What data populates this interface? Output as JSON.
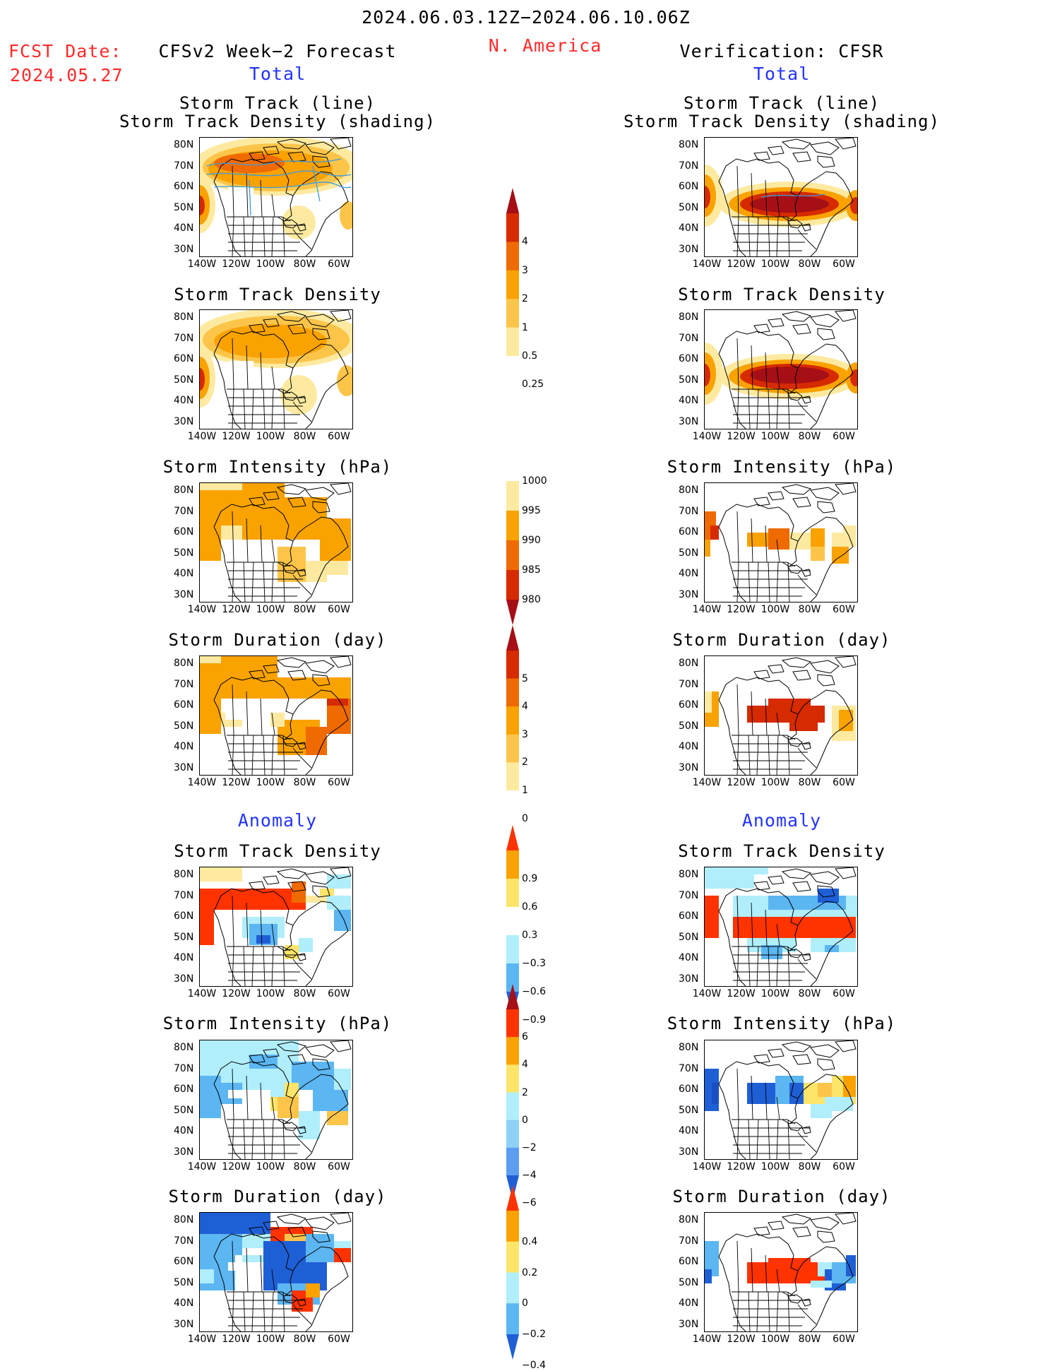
{
  "header": {
    "period": "2024.06.03.12Z−2024.06.10.06Z",
    "fcst_label": "FCST Date:",
    "fcst_date": "2024.05.27",
    "left_title": "CFSv2 Week−2 Forecast",
    "region": "N. America",
    "right_title": "Verification: CFSR",
    "total_label": "Total",
    "anomaly_label": "Anomaly"
  },
  "axes": {
    "lat_labels": [
      "80N",
      "70N",
      "60N",
      "50N",
      "40N",
      "30N"
    ],
    "lon_labels": [
      "140W",
      "120W",
      "100W",
      "80W",
      "60W"
    ]
  },
  "panels": {
    "track": [
      "Storm Track (line)",
      "Storm Track Density (shading)"
    ],
    "density": "Storm Track Density",
    "intensity": "Storm Intensity (hPa)",
    "duration": "Storm Duration (day)"
  },
  "colorbars": {
    "density": {
      "labels": [
        "4",
        "3",
        "2",
        "1",
        "0.5",
        "0.25"
      ],
      "colors": [
        "#a50f15",
        "#d62a00",
        "#ef6a00",
        "#f9a200",
        "#fcc54a",
        "#fdeaa0",
        "#ffffff"
      ]
    },
    "intensity": {
      "labels": [
        "1000",
        "995",
        "990",
        "985",
        "980"
      ],
      "colors": [
        "#ffffff",
        "#fdeaa0",
        "#f9a200",
        "#ef6a00",
        "#d62a00",
        "#a50f15"
      ]
    },
    "duration": {
      "labels": [
        "5",
        "4",
        "3",
        "2",
        "1",
        "0"
      ],
      "colors": [
        "#a50f15",
        "#d62a00",
        "#ef6a00",
        "#f9a200",
        "#fcc54a",
        "#fdeaa0",
        "#ffffff"
      ]
    },
    "anom_density": {
      "labels": [
        "0.9",
        "0.6",
        "0.3",
        "−0.3",
        "−0.6",
        "−0.9"
      ],
      "colors": [
        "#ff3300",
        "#f9a200",
        "#fde56a",
        "#ffffff",
        "#b0eefc",
        "#5cb6f2",
        "#1f5fd6"
      ]
    },
    "anom_intensity": {
      "labels": [
        "6",
        "4",
        "2",
        "0",
        "−2",
        "−4",
        "−6"
      ],
      "colors": [
        "#a50f15",
        "#ff3300",
        "#f9a200",
        "#fde56a",
        "#b0eefc",
        "#8fd0f7",
        "#5c9ef0",
        "#1f5fd6"
      ]
    },
    "anom_duration": {
      "labels": [
        "0.4",
        "0.2",
        "0",
        "−0.2",
        "−0.4"
      ],
      "colors": [
        "#ff3300",
        "#f9a200",
        "#fde56a",
        "#b0eefc",
        "#5cb6f2",
        "#1f5fd6"
      ]
    }
  }
}
